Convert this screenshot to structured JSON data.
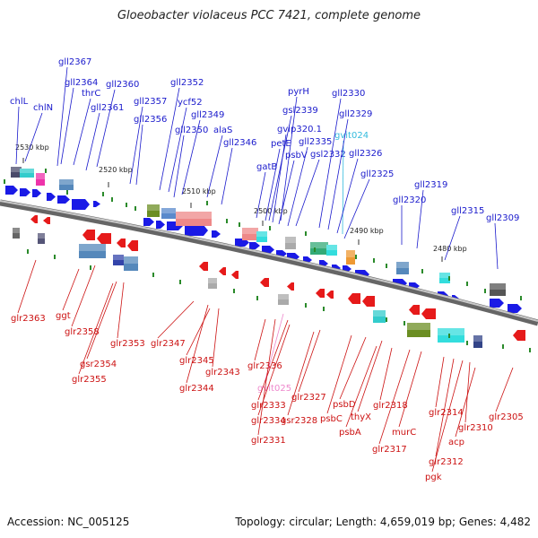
{
  "title": "Gloeobacter violaceus PCC 7421, complete genome",
  "footer": {
    "accession": "Accession: NC_005125",
    "summary": "Topology: circular; Length: 4,659,019 bp; Genes: 4,482"
  },
  "scale_labels": [
    "2530 kbp",
    "2520 kbp",
    "2510 kbp",
    "2500 kbp",
    "2490 kbp",
    "2480 kbp"
  ],
  "top_labels": [
    "chlL",
    "chlN",
    "gll2367",
    "gll2364",
    "thrC",
    "gll2360",
    "gll2361",
    "gll2357",
    "gll2356",
    "gll2352",
    "ycf52",
    "gll2349",
    "gll2350",
    "alaS",
    "gll2346",
    "pyrH",
    "gsl2339",
    "gvip320.1",
    "petE",
    "psbV",
    "gll2335",
    "gsl2332",
    "gvit024",
    "gll2330",
    "gll2329",
    "gll2326",
    "gll2325",
    "gatB",
    "gll2320",
    "gll2319",
    "gll2315",
    "gll2309"
  ],
  "bottom_labels": [
    "glr2363",
    "ggt",
    "glr2358",
    "gsr2354",
    "glr2355",
    "glr2353",
    "glr2347",
    "glr2345",
    "glr2343",
    "glr2344",
    "glr2336",
    "gvit025",
    "glr2333",
    "glr2334",
    "glr2331",
    "gsr2328",
    "glr2327",
    "psbC",
    "psbD",
    "psbA",
    "thyX",
    "glr2318",
    "glr2317",
    "murC",
    "glr2314",
    "glr2312",
    "pgk",
    "acp",
    "glr2310",
    "glr2305"
  ],
  "colors": {
    "top_label": "#1a1acc",
    "bottom_label": "#cc1111",
    "special_top": "#33bbdd",
    "special_bottom": "#ee88cc",
    "fwd_gene": "#1a1ae6",
    "rev_gene": "#e61a1a",
    "tick": "#2a8a2a",
    "backbone": "#9a9a9a"
  }
}
